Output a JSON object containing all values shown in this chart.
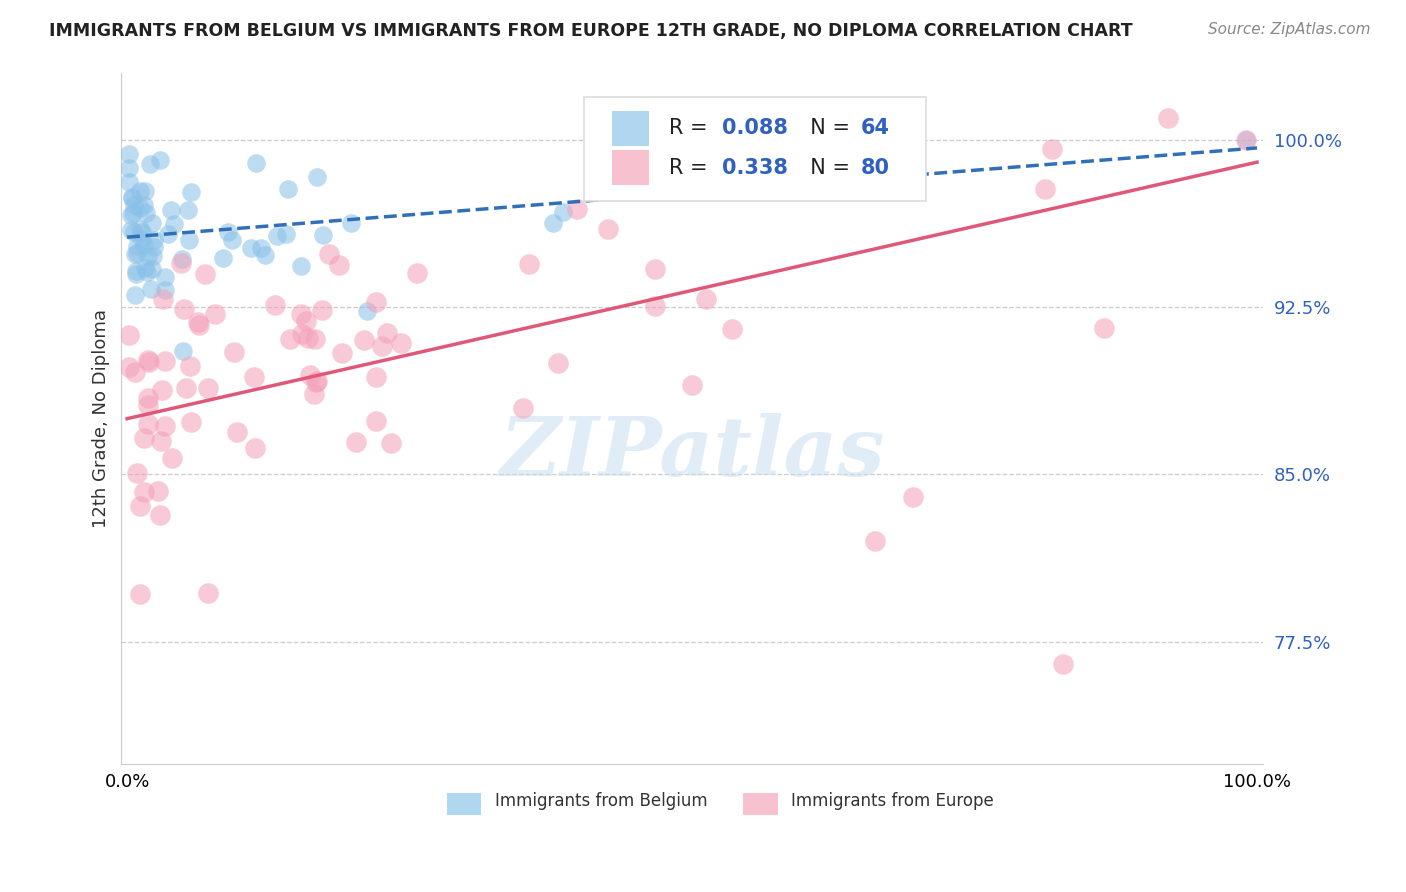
{
  "title": "IMMIGRANTS FROM BELGIUM VS IMMIGRANTS FROM EUROPE 12TH GRADE, NO DIPLOMA CORRELATION CHART",
  "source": "Source: ZipAtlas.com",
  "ylabel": "12th Grade, No Diploma",
  "r_belgium": 0.088,
  "n_belgium": 64,
  "r_europe": 0.338,
  "n_europe": 80,
  "color_belgium": "#88c0e8",
  "color_europe": "#f4a0b8",
  "trendline_belgium": "#3070b8",
  "trendline_europe": "#e05878",
  "watermark": "ZIPatlas",
  "xlim": [
    0.0,
    1.0
  ],
  "ylim": [
    0.72,
    1.03
  ],
  "yticks": [
    0.775,
    0.85,
    0.925,
    1.0
  ],
  "ytick_labels": [
    "77.5%",
    "85.0%",
    "92.5%",
    "100.0%"
  ]
}
